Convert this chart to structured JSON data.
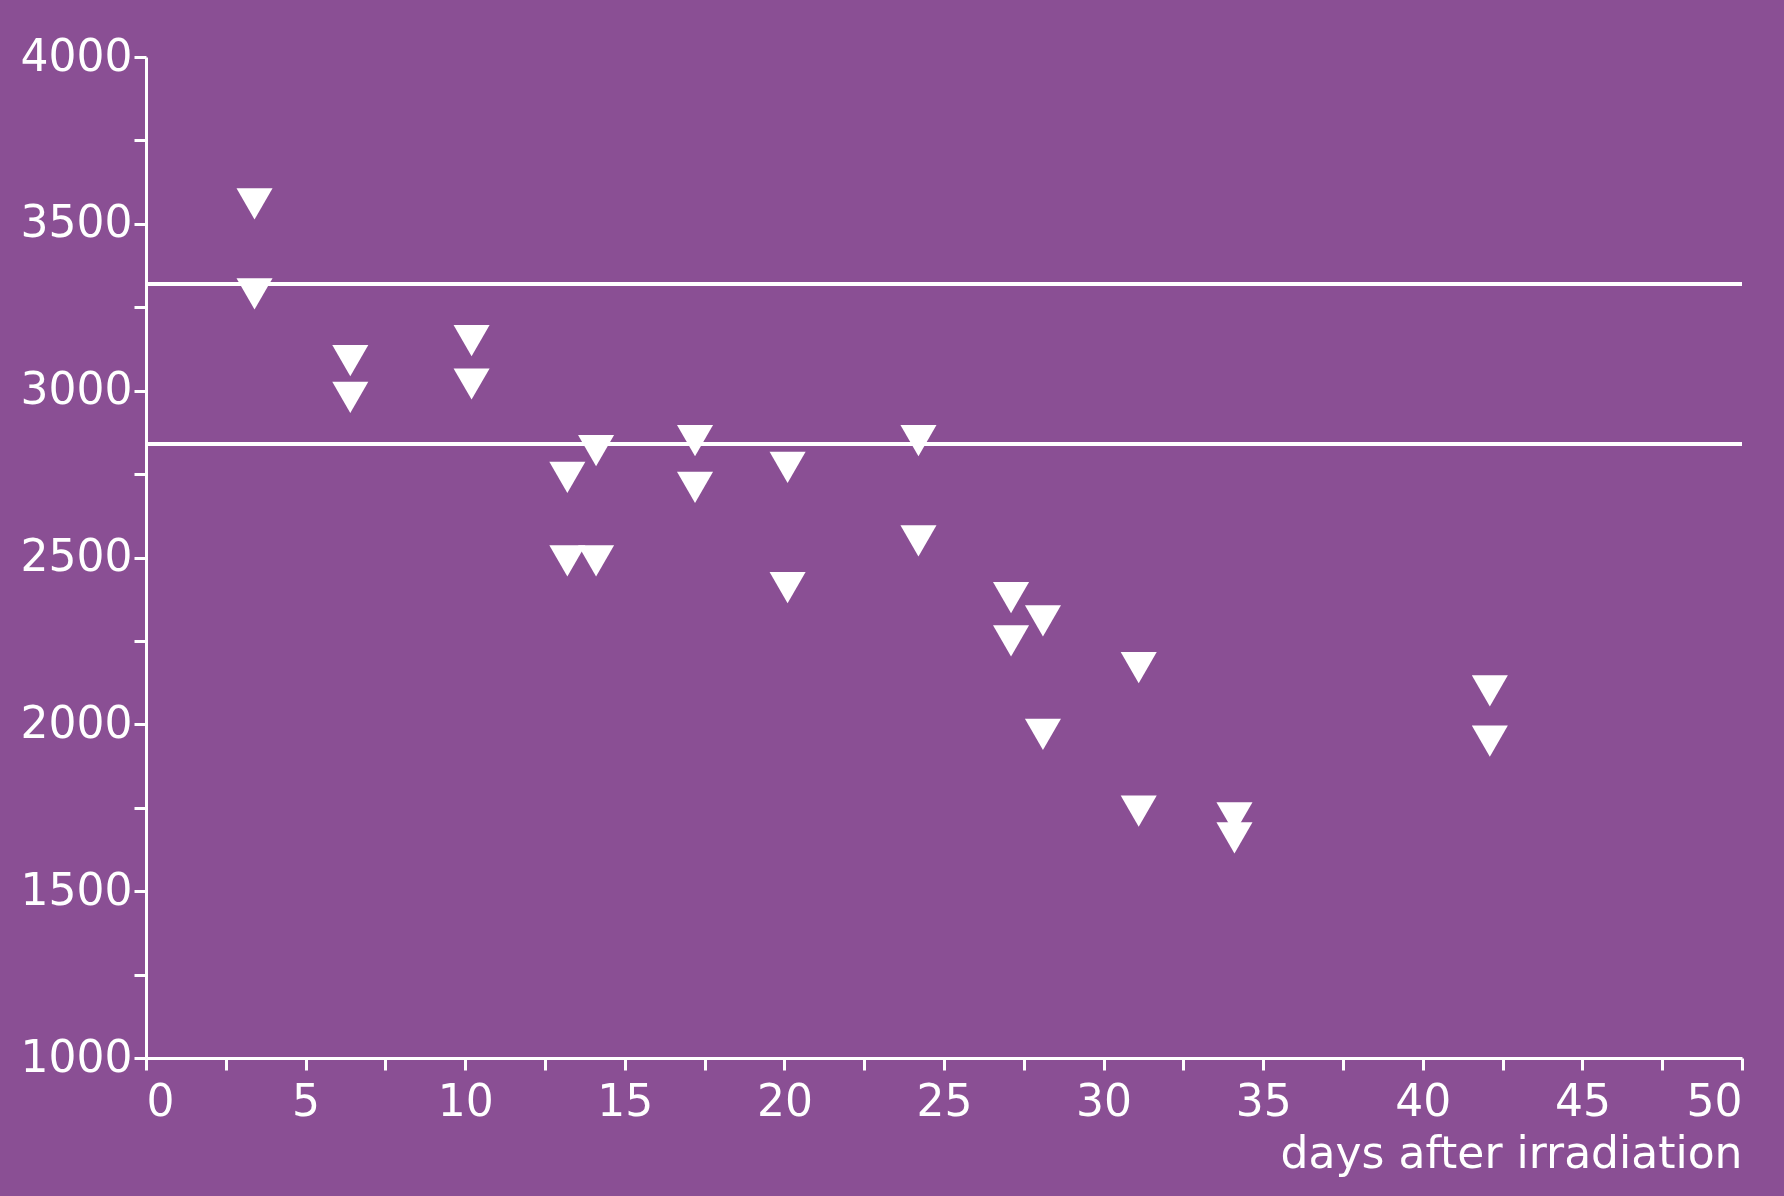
{
  "chart_data": {
    "type": "scatter",
    "xlabel": "days after irradiation",
    "x": [
      3.4,
      3.4,
      6.4,
      6.4,
      10.2,
      10.2,
      13.2,
      13.2,
      14.1,
      14.1,
      17.2,
      17.2,
      20.1,
      20.1,
      24.2,
      24.2,
      27.1,
      27.1,
      28.1,
      28.1,
      31.1,
      31.1,
      34.1,
      34.1,
      42.1,
      42.1
    ],
    "series": [
      {
        "color": "#ffffff",
        "values": [
          3560,
          3290,
          3090,
          2980,
          3150,
          3020,
          2740,
          2490,
          2820,
          2490,
          2850,
          2710,
          2770,
          2410,
          2850,
          2550,
          2380,
          2250,
          2310,
          1970,
          2170,
          1740,
          1720,
          1660,
          2100,
          1950
        ]
      }
    ],
    "xlim": [
      0,
      50
    ],
    "ylim": [
      1000,
      4000
    ],
    "xticks": [
      0,
      {
        "value": 2.5,
        "label": null
      },
      5,
      {
        "value": 7.5,
        "label": null
      },
      10,
      {
        "value": 12.5,
        "label": null
      },
      15,
      {
        "value": 17.5,
        "label": null
      },
      20,
      {
        "value": 22.5,
        "label": null
      },
      25,
      {
        "value": 27.5,
        "label": null
      },
      30,
      {
        "value": 32.5,
        "label": null
      },
      35,
      {
        "value": 37.5,
        "label": null
      },
      40,
      {
        "value": 42.5,
        "label": null
      },
      45,
      {
        "value": 47.5,
        "label": null
      },
      50
    ],
    "yticks": [
      1000,
      {
        "value": 1250,
        "label": null
      },
      1500,
      {
        "value": 1750,
        "label": null
      },
      2000,
      {
        "value": 2250,
        "label": null
      },
      2500,
      {
        "value": 2750,
        "label": null
      },
      3000,
      {
        "value": 3250,
        "label": null
      },
      3500,
      {
        "value": 3750,
        "label": null
      },
      4000
    ],
    "ref_lines": [
      {
        "axis": "y",
        "value": 3320,
        "color": "#ffffff"
      },
      {
        "axis": "y",
        "value": 2840,
        "color": "#ffffff"
      }
    ],
    "marker": "triangle",
    "grid": false,
    "legend": false
  }
}
